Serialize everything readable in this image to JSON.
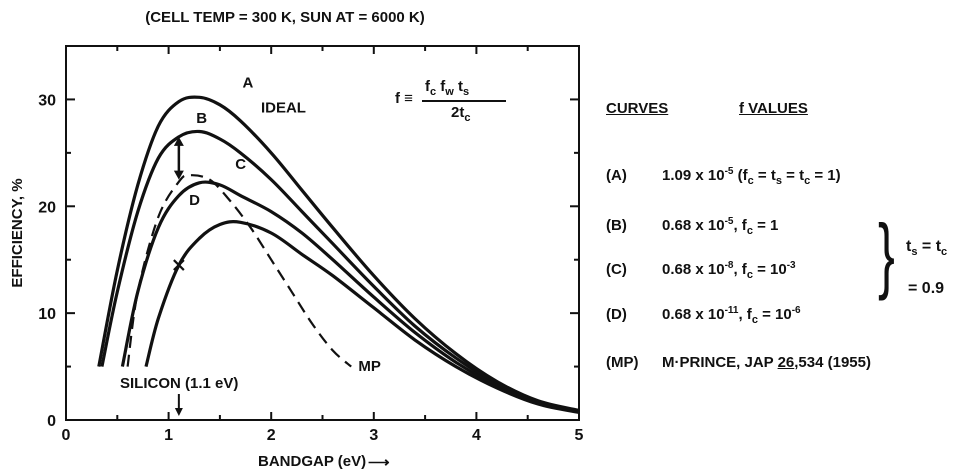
{
  "chart_data": {
    "type": "line",
    "subtitle": "(CELL TEMP = 300 K, SUN AT = 6000 K)",
    "xlabel": "BANDGAP (eV)",
    "ylabel": "EFFICIENCY, %",
    "xlim": [
      0,
      5
    ],
    "ylim": [
      0,
      35
    ],
    "xticks": [
      "0",
      "1",
      "2",
      "3",
      "4",
      "5"
    ],
    "yticks": [
      "0",
      "10",
      "20",
      "30"
    ],
    "series": [
      {
        "name": "A",
        "style": "solid",
        "x": [
          0.32,
          0.5,
          0.7,
          0.9,
          1.1,
          1.3,
          1.5,
          1.7,
          2.0,
          2.3,
          2.6,
          3.0,
          3.4,
          3.8,
          4.2,
          4.6,
          5.0
        ],
        "y": [
          5,
          14,
          22,
          27.5,
          29.8,
          30.2,
          29.5,
          28,
          25,
          21.5,
          18,
          13.5,
          9.5,
          6.2,
          3.6,
          1.8,
          0.9
        ]
      },
      {
        "name": "B",
        "style": "solid",
        "x": [
          0.35,
          0.5,
          0.7,
          0.9,
          1.1,
          1.3,
          1.5,
          1.7,
          2.0,
          2.3,
          2.6,
          3.0,
          3.4,
          3.8,
          4.2,
          4.6,
          5.0
        ],
        "y": [
          5,
          12,
          19.5,
          24.5,
          26.5,
          27,
          26.3,
          25,
          22.5,
          19.5,
          16.5,
          12.5,
          8.8,
          5.8,
          3.4,
          1.7,
          0.8
        ]
      },
      {
        "name": "C",
        "style": "solid",
        "x": [
          0.55,
          0.7,
          0.9,
          1.1,
          1.3,
          1.5,
          1.7,
          2.0,
          2.3,
          2.6,
          3.0,
          3.4,
          3.8,
          4.2,
          4.6,
          5.0
        ],
        "y": [
          5,
          12,
          18,
          21,
          22.2,
          22,
          21,
          19.5,
          17.5,
          15,
          11.5,
          8.2,
          5.4,
          3.2,
          1.6,
          0.8
        ]
      },
      {
        "name": "D",
        "style": "solid",
        "x": [
          0.78,
          0.9,
          1.1,
          1.3,
          1.5,
          1.7,
          2.0,
          2.3,
          2.6,
          3.0,
          3.4,
          3.8,
          4.2,
          4.6,
          5.0
        ],
        "y": [
          5,
          9.5,
          14.5,
          17,
          18.3,
          18.5,
          17.5,
          15.5,
          13.5,
          10.5,
          7.5,
          5,
          3,
          1.5,
          0.7
        ]
      },
      {
        "name": "MP",
        "style": "dashed",
        "x": [
          0.6,
          0.7,
          0.9,
          1.1,
          1.2,
          1.4,
          1.6,
          1.8,
          2.0,
          2.2,
          2.4,
          2.6,
          2.78
        ],
        "y": [
          5,
          12,
          19,
          22.3,
          22.9,
          22.5,
          20.5,
          18,
          15,
          12,
          9,
          6.5,
          5
        ]
      }
    ],
    "curve_annotations": {
      "A": "A",
      "ideal": "IDEAL",
      "B": "B",
      "C": "C",
      "D": "D",
      "MP": "MP"
    },
    "silicon_label": "SILICON (1.1 eV)",
    "silicon_x": 1.1,
    "silicon_arrow_y": [
      26.5,
      22.5
    ],
    "silicon_marker_y": 14.5,
    "xlabel_arrow": "⟶"
  },
  "formula": {
    "lhs": "f ≡",
    "numerator": "f_c f_w t_s",
    "denominator": "2t_c"
  },
  "legend": {
    "curves_heading": "CURVES",
    "values_heading": "f VALUES",
    "rows": [
      {
        "key": "(A)",
        "value": "1.09 x 10^-5 (f_c = t_s = t_c = 1)"
      },
      {
        "key": "(B)",
        "value": "0.68 x 10^-5, f_c = 1"
      },
      {
        "key": "(C)",
        "value": "0.68 x 10^-8, f_c = 10^-3"
      },
      {
        "key": "(D)",
        "value": "0.68 x 10^-11, f_c = 10^-6"
      },
      {
        "key": "(MP)",
        "value": "M·PRINCE, JAP 26,534 (1955)"
      }
    ],
    "brace_top": "t_s = t_c",
    "brace_bottom": "= 0.9"
  }
}
